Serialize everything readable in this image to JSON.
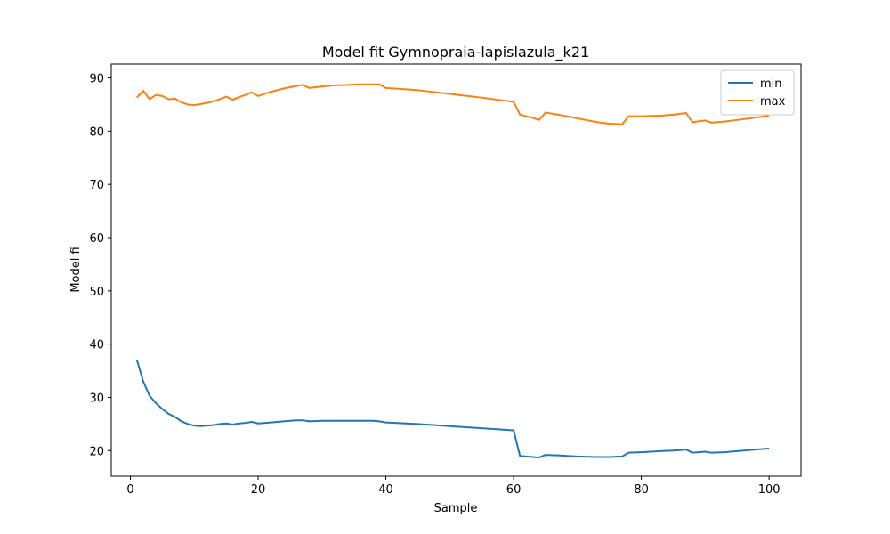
{
  "chart_data": {
    "type": "line",
    "title": "Model fit Gymnopraia-lapislazula_k21",
    "xlabel": "Sample",
    "ylabel": "Model fi",
    "xlim": [
      -3,
      105
    ],
    "ylim": [
      15.2,
      92.6
    ],
    "xticks": [
      0,
      20,
      40,
      60,
      80,
      100
    ],
    "yticks": [
      20,
      30,
      40,
      50,
      60,
      70,
      80,
      90
    ],
    "grid": false,
    "legend_position": "top-right",
    "series": [
      {
        "name": "min",
        "color": "#1f77b4",
        "points": [
          [
            1,
            37.1
          ],
          [
            2,
            33.0
          ],
          [
            3,
            30.3
          ],
          [
            4,
            28.9
          ],
          [
            5,
            27.8
          ],
          [
            6,
            26.9
          ],
          [
            7,
            26.3
          ],
          [
            8,
            25.5
          ],
          [
            9,
            25.0
          ],
          [
            10,
            24.7
          ],
          [
            11,
            24.6
          ],
          [
            12,
            24.7
          ],
          [
            13,
            24.8
          ],
          [
            14,
            25.0
          ],
          [
            15,
            25.1
          ],
          [
            16,
            24.9
          ],
          [
            17,
            25.1
          ],
          [
            18,
            25.2
          ],
          [
            19,
            25.4
          ],
          [
            20,
            25.1
          ],
          [
            22,
            25.3
          ],
          [
            24,
            25.5
          ],
          [
            26,
            25.7
          ],
          [
            27,
            25.7
          ],
          [
            28,
            25.5
          ],
          [
            30,
            25.6
          ],
          [
            32,
            25.6
          ],
          [
            34,
            25.6
          ],
          [
            36,
            25.6
          ],
          [
            38,
            25.6
          ],
          [
            39,
            25.5
          ],
          [
            40,
            25.3
          ],
          [
            45,
            25.0
          ],
          [
            50,
            24.6
          ],
          [
            55,
            24.2
          ],
          [
            60,
            23.8
          ],
          [
            61,
            19.0
          ],
          [
            63,
            18.8
          ],
          [
            64,
            18.7
          ],
          [
            65,
            19.2
          ],
          [
            67,
            19.1
          ],
          [
            70,
            18.9
          ],
          [
            73,
            18.8
          ],
          [
            75,
            18.8
          ],
          [
            77,
            18.9
          ],
          [
            78,
            19.6
          ],
          [
            80,
            19.7
          ],
          [
            83,
            19.9
          ],
          [
            85,
            20.0
          ],
          [
            87,
            20.2
          ],
          [
            88,
            19.6
          ],
          [
            90,
            19.8
          ],
          [
            91,
            19.6
          ],
          [
            93,
            19.7
          ],
          [
            95,
            19.9
          ],
          [
            97,
            20.1
          ],
          [
            100,
            20.4
          ]
        ]
      },
      {
        "name": "max",
        "color": "#ff7f0e",
        "points": [
          [
            1,
            86.3
          ],
          [
            2,
            87.6
          ],
          [
            3,
            86.0
          ],
          [
            4,
            86.8
          ],
          [
            5,
            86.6
          ],
          [
            6,
            86.0
          ],
          [
            7,
            86.1
          ],
          [
            8,
            85.4
          ],
          [
            9,
            85.0
          ],
          [
            10,
            84.9
          ],
          [
            11,
            85.1
          ],
          [
            12,
            85.3
          ],
          [
            13,
            85.6
          ],
          [
            14,
            86.0
          ],
          [
            15,
            86.5
          ],
          [
            16,
            85.9
          ],
          [
            17,
            86.4
          ],
          [
            18,
            86.8
          ],
          [
            19,
            87.3
          ],
          [
            20,
            86.6
          ],
          [
            22,
            87.4
          ],
          [
            24,
            88.0
          ],
          [
            26,
            88.5
          ],
          [
            27,
            88.7
          ],
          [
            28,
            88.1
          ],
          [
            30,
            88.4
          ],
          [
            32,
            88.6
          ],
          [
            34,
            88.7
          ],
          [
            36,
            88.8
          ],
          [
            38,
            88.8
          ],
          [
            39,
            88.8
          ],
          [
            40,
            88.1
          ],
          [
            45,
            87.7
          ],
          [
            50,
            87.0
          ],
          [
            55,
            86.3
          ],
          [
            60,
            85.5
          ],
          [
            61,
            83.1
          ],
          [
            63,
            82.5
          ],
          [
            64,
            82.1
          ],
          [
            65,
            83.5
          ],
          [
            67,
            83.1
          ],
          [
            70,
            82.4
          ],
          [
            73,
            81.7
          ],
          [
            75,
            81.4
          ],
          [
            77,
            81.3
          ],
          [
            78,
            82.8
          ],
          [
            80,
            82.8
          ],
          [
            83,
            82.9
          ],
          [
            85,
            83.1
          ],
          [
            87,
            83.4
          ],
          [
            88,
            81.7
          ],
          [
            90,
            82.0
          ],
          [
            91,
            81.6
          ],
          [
            93,
            81.8
          ],
          [
            95,
            82.1
          ],
          [
            97,
            82.4
          ],
          [
            100,
            82.9
          ]
        ]
      }
    ]
  }
}
